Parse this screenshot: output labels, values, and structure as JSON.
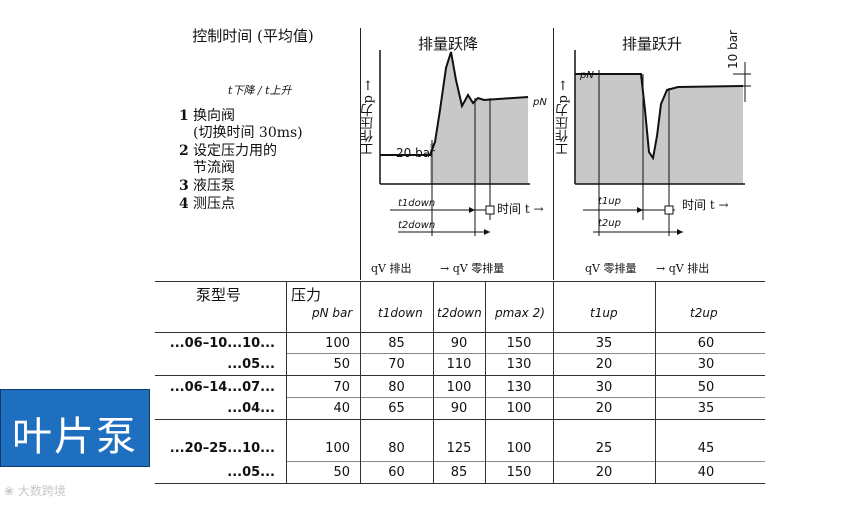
{
  "legend": {
    "title": "控制时间 (平均值)",
    "subtitle": "t下降 / t上升",
    "items": [
      {
        "num": "1",
        "text": "换向阀"
      },
      {
        "num": "",
        "text": "(切换时间 30ms)"
      },
      {
        "num": "2",
        "text": "设定压力用的"
      },
      {
        "num": "",
        "text": "节流阀"
      },
      {
        "num": "3",
        "text": "液压泵"
      },
      {
        "num": "4",
        "text": "测压点"
      }
    ]
  },
  "diagram_down": {
    "title": "排量跃降",
    "ylabel": "工作压力p →",
    "level_label": "20 bar",
    "pn_label": "pN",
    "time_label": "时间 t →",
    "t1_label": "t1down",
    "t2_label": "t2down",
    "footer_left": "qV 排出",
    "footer_right": "→ qV 零排量"
  },
  "diagram_up": {
    "title": "排量跃升",
    "ylabel": "工作压力p →",
    "bar_label": "10 bar",
    "pn_label": "pN",
    "time_label": "时间 t →",
    "t1_label": "t1up",
    "t2_label": "t2up",
    "footer_left": "qV 零排量",
    "footer_right": "→ qV 排出"
  },
  "table": {
    "headers": {
      "pump": "泵型号",
      "pressure": "压力",
      "pressure_unit": "pN bar",
      "t1down": "t1down",
      "t2down": "t2down",
      "pmax": "pmax 2)",
      "t1up": "t1up",
      "t2up": "t2up"
    },
    "rows": [
      {
        "label": "...06–10...10...",
        "cells": [
          "100",
          "85",
          "90",
          "150",
          "35",
          "60"
        ]
      },
      {
        "label": "...05...",
        "cells": [
          "50",
          "70",
          "110",
          "130",
          "20",
          "30"
        ]
      },
      {
        "label": "...06–14...07...",
        "cells": [
          "70",
          "80",
          "100",
          "130",
          "30",
          "50"
        ]
      },
      {
        "label": "...04...",
        "cells": [
          "40",
          "65",
          "90",
          "100",
          "20",
          "35"
        ]
      },
      {
        "label": "...20–25...10...",
        "cells": [
          "100",
          "80",
          "125",
          "100",
          "25",
          "45"
        ]
      },
      {
        "label": "...05...",
        "cells": [
          "50",
          "60",
          "85",
          "150",
          "20",
          "40"
        ]
      }
    ]
  },
  "side_label": "叶片泵",
  "watermark": "大数跨境",
  "colors": {
    "side_bg": "#1f6fc1",
    "fill_gray": "#c8c8c8"
  }
}
